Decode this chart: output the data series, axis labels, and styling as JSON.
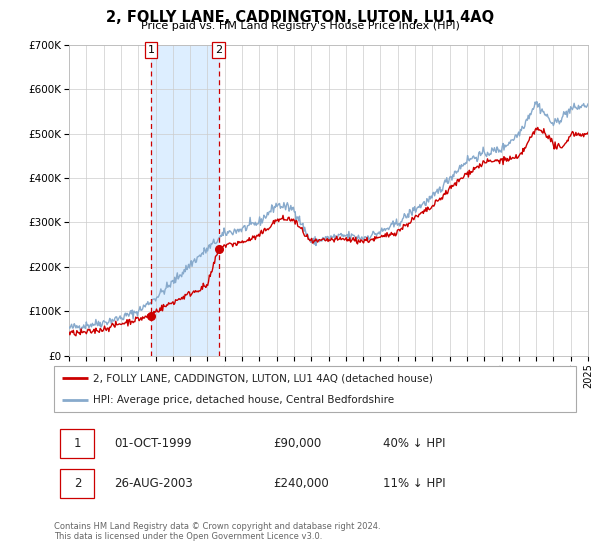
{
  "title": "2, FOLLY LANE, CADDINGTON, LUTON, LU1 4AQ",
  "subtitle": "Price paid vs. HM Land Registry's House Price Index (HPI)",
  "ylim": [
    0,
    700000
  ],
  "yticks": [
    0,
    100000,
    200000,
    300000,
    400000,
    500000,
    600000,
    700000
  ],
  "ytick_labels": [
    "£0",
    "£100K",
    "£200K",
    "£300K",
    "£400K",
    "£500K",
    "£600K",
    "£700K"
  ],
  "sale1_date": 1999.75,
  "sale1_price": 90000,
  "sale2_date": 2003.65,
  "sale2_price": 240000,
  "shaded_color": "#ddeeff",
  "red_line_color": "#cc0000",
  "blue_line_color": "#88aacc",
  "sale_dot_color": "#cc0000",
  "dashed_line_color": "#cc0000",
  "legend1_label": "2, FOLLY LANE, CADDINGTON, LUTON, LU1 4AQ (detached house)",
  "legend2_label": "HPI: Average price, detached house, Central Bedfordshire",
  "transaction1_date": "01-OCT-1999",
  "transaction1_price": "£90,000",
  "transaction1_hpi": "40% ↓ HPI",
  "transaction2_date": "26-AUG-2003",
  "transaction2_price": "£240,000",
  "transaction2_hpi": "11% ↓ HPI",
  "footer1": "Contains HM Land Registry data © Crown copyright and database right 2024.",
  "footer2": "This data is licensed under the Open Government Licence v3.0.",
  "background_color": "#ffffff",
  "grid_color": "#cccccc",
  "title_fontsize": 10.5,
  "subtitle_fontsize": 8.0,
  "tick_fontsize": 7.5,
  "legend_fontsize": 7.5,
  "table_fontsize": 8.5,
  "footer_fontsize": 6.0
}
